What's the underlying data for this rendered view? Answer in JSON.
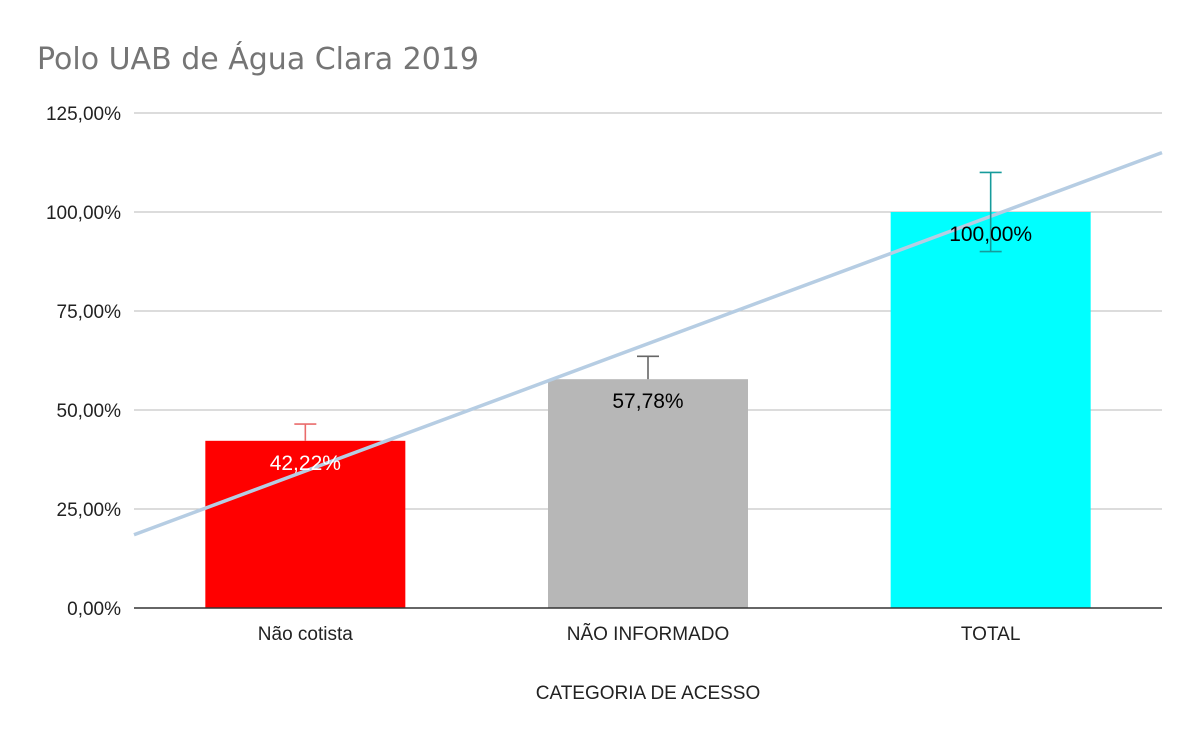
{
  "chart_data": {
    "type": "bar",
    "title": "Polo UAB de Água Clara 2019",
    "xlabel": "CATEGORIA DE ACESSO",
    "ylabel": "",
    "categories": [
      "Não cotista",
      "NÃO INFORMADO",
      "TOTAL"
    ],
    "values": [
      42.22,
      57.78,
      100.0
    ],
    "data_labels": [
      "42,22%",
      "57,78%",
      "100,00%"
    ],
    "bar_colors": [
      "#ff0000",
      "#b7b7b7",
      "#00ffff"
    ],
    "data_label_colors": [
      "#ffffff",
      "#000000",
      "#000000"
    ],
    "error_bar_plus": [
      4.22,
      5.78,
      10.0
    ],
    "error_bar_minus": [
      0,
      0,
      10.0
    ],
    "error_bar_colors": [
      "#ea6b6b",
      "#666666",
      "#169b9b"
    ],
    "ylim": [
      0,
      125
    ],
    "y_ticks": [
      0,
      25,
      50,
      75,
      100,
      125
    ],
    "y_tick_labels": [
      "0,00%",
      "25,00%",
      "50,00%",
      "75,00%",
      "100,00%",
      "125,00%"
    ],
    "grid": true,
    "legend": "none",
    "trendline": {
      "type": "linear",
      "color": "#b6cde3",
      "start_value": 18.5,
      "end_value": 115.0
    }
  }
}
